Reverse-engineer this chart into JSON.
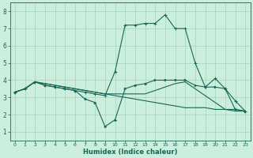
{
  "xlabel": "Humidex (Indice chaleur)",
  "bg_color": "#cceedd",
  "grid_color": "#99ccbb",
  "line_color": "#1a6655",
  "xlim": [
    -0.5,
    23.5
  ],
  "ylim": [
    0.5,
    8.5
  ],
  "xticks": [
    0,
    1,
    2,
    3,
    4,
    5,
    6,
    7,
    8,
    9,
    10,
    11,
    12,
    13,
    14,
    15,
    16,
    17,
    18,
    19,
    20,
    21,
    22,
    23
  ],
  "yticks": [
    1,
    2,
    3,
    4,
    5,
    6,
    7,
    8
  ],
  "line1_x": [
    0,
    1,
    2,
    3,
    4,
    5,
    6,
    7,
    8,
    9,
    10,
    11,
    12,
    13,
    14,
    15,
    16,
    17,
    18,
    19,
    20,
    21,
    22,
    23
  ],
  "line1_y": [
    3.3,
    3.5,
    3.9,
    3.7,
    3.6,
    3.5,
    3.4,
    3.3,
    3.2,
    3.1,
    4.5,
    7.2,
    7.2,
    7.3,
    7.3,
    7.8,
    7.0,
    7.0,
    5.0,
    3.6,
    4.1,
    3.5,
    2.8,
    2.2
  ],
  "line2_x": [
    0,
    1,
    2,
    3,
    4,
    5,
    6,
    7,
    8,
    9,
    10,
    11,
    12,
    13,
    14,
    15,
    16,
    17,
    18,
    19,
    20,
    21,
    22,
    23
  ],
  "line2_y": [
    3.3,
    3.5,
    3.9,
    3.7,
    3.6,
    3.5,
    3.4,
    2.9,
    2.7,
    1.3,
    1.7,
    3.5,
    3.7,
    3.8,
    4.0,
    4.0,
    4.0,
    4.0,
    3.7,
    3.6,
    3.6,
    3.5,
    2.3,
    2.2
  ],
  "line3_x": [
    0,
    1,
    2,
    3,
    4,
    5,
    6,
    7,
    8,
    9,
    10,
    11,
    12,
    13,
    14,
    15,
    16,
    17,
    18,
    19,
    20,
    21,
    22,
    23
  ],
  "line3_y": [
    3.3,
    3.5,
    3.9,
    3.8,
    3.7,
    3.6,
    3.5,
    3.4,
    3.3,
    3.2,
    3.2,
    3.2,
    3.2,
    3.2,
    3.4,
    3.6,
    3.8,
    3.9,
    3.5,
    3.1,
    2.7,
    2.3,
    2.2,
    2.2
  ],
  "line4_x": [
    0,
    1,
    2,
    3,
    4,
    5,
    6,
    7,
    8,
    9,
    10,
    11,
    12,
    13,
    14,
    15,
    16,
    17,
    18,
    19,
    20,
    21,
    22,
    23
  ],
  "line4_y": [
    3.3,
    3.5,
    3.9,
    3.8,
    3.7,
    3.6,
    3.5,
    3.4,
    3.3,
    3.2,
    3.1,
    3.0,
    2.9,
    2.8,
    2.7,
    2.6,
    2.5,
    2.4,
    2.4,
    2.4,
    2.3,
    2.3,
    2.3,
    2.2
  ]
}
